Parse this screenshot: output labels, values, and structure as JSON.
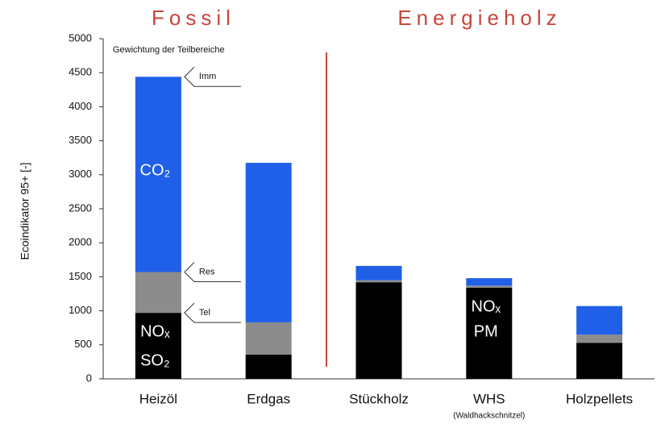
{
  "chart_data": {
    "type": "stacked_bar",
    "headers": [
      "Fossil",
      "Energieholz"
    ],
    "note": "Gewichtung der Teilbereiche",
    "ylabel": "Ecoindikator 95+ [-]",
    "categories": [
      "Heizöl",
      "Erdgas",
      "Stückholz",
      "WHS",
      "Holzpellets"
    ],
    "category_note": "(Waldhackschnitzel)",
    "series": [
      {
        "color": "#000000",
        "values": [
          970,
          355,
          1420,
          1340,
          530
        ]
      },
      {
        "color": "#8c8c8c",
        "values": [
          600,
          475,
          30,
          30,
          120
        ]
      },
      {
        "color": "#2060e8",
        "values": [
          2870,
          2345,
          210,
          110,
          420
        ]
      }
    ],
    "annotations": [
      "CO₂",
      "NOₓ",
      "SO₂",
      "NOₓ",
      "PM"
    ],
    "callouts": [
      "Imm",
      "Res",
      "Tel"
    ],
    "ylim": [
      0,
      5000
    ],
    "yticks": [
      0,
      500,
      1000,
      1500,
      2000,
      2500,
      3000,
      3500,
      4000,
      4500,
      5000
    ]
  }
}
